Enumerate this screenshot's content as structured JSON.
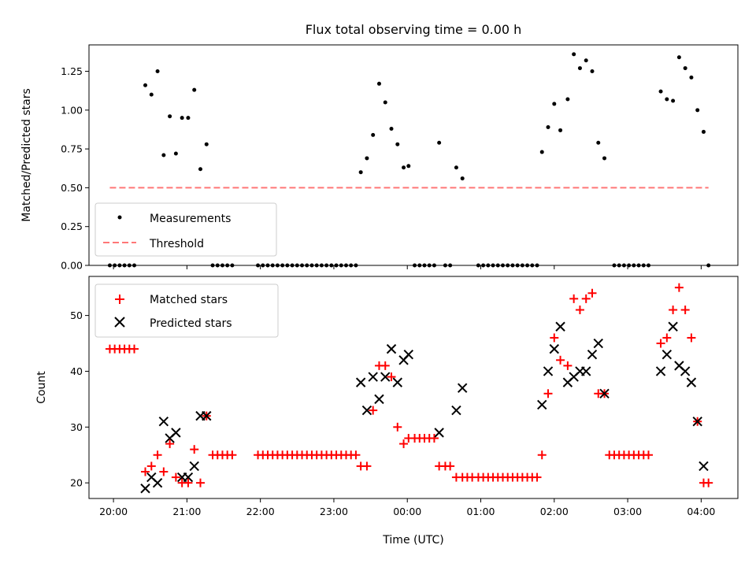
{
  "chart_data": [
    {
      "panel": "top",
      "type": "scatter",
      "title": "Flux total observing time = 0.00 h",
      "xlabel": "",
      "ylabel": "Matched/Predicted stars",
      "xlim": [
        "19:40",
        "04:30"
      ],
      "ylim": [
        0.0,
        1.42
      ],
      "yticks": [
        "0.00",
        "0.25",
        "0.50",
        "0.75",
        "1.00",
        "1.25"
      ],
      "xticks": [
        "20:00",
        "21:00",
        "22:00",
        "23:00",
        "00:00",
        "01:00",
        "02:00",
        "03:00",
        "04:00"
      ],
      "grid": false,
      "legend": {
        "position": "lower-left",
        "entries": [
          "Measurements",
          "Threshold"
        ]
      },
      "series": [
        {
          "name": "Measurements",
          "marker": "dot",
          "color": "#000000",
          "points": [
            [
              "19:57",
              0
            ],
            [
              "20:01",
              0
            ],
            [
              "20:05",
              0
            ],
            [
              "20:09",
              0
            ],
            [
              "20:13",
              0
            ],
            [
              "20:17",
              0
            ],
            [
              "20:26",
              1.16
            ],
            [
              "20:31",
              1.1
            ],
            [
              "20:36",
              1.25
            ],
            [
              "20:41",
              0.71
            ],
            [
              "20:46",
              0.96
            ],
            [
              "20:51",
              0.72
            ],
            [
              "20:56",
              0.95
            ],
            [
              "21:01",
              0.95
            ],
            [
              "21:06",
              1.13
            ],
            [
              "21:11",
              0.62
            ],
            [
              "21:16",
              0.78
            ],
            [
              "21:21",
              0
            ],
            [
              "21:25",
              0
            ],
            [
              "21:29",
              0
            ],
            [
              "21:33",
              0
            ],
            [
              "21:37",
              0
            ],
            [
              "21:58",
              0
            ],
            [
              "22:02",
              0
            ],
            [
              "22:06",
              0
            ],
            [
              "22:10",
              0
            ],
            [
              "22:14",
              0
            ],
            [
              "22:18",
              0
            ],
            [
              "22:22",
              0
            ],
            [
              "22:26",
              0
            ],
            [
              "22:30",
              0
            ],
            [
              "22:34",
              0
            ],
            [
              "22:38",
              0
            ],
            [
              "22:42",
              0
            ],
            [
              "22:46",
              0
            ],
            [
              "22:50",
              0
            ],
            [
              "22:54",
              0
            ],
            [
              "22:58",
              0
            ],
            [
              "23:02",
              0
            ],
            [
              "23:06",
              0
            ],
            [
              "23:10",
              0
            ],
            [
              "23:14",
              0
            ],
            [
              "23:18",
              0
            ],
            [
              "23:22",
              0.6
            ],
            [
              "23:27",
              0.69
            ],
            [
              "23:32",
              0.84
            ],
            [
              "23:37",
              1.17
            ],
            [
              "23:42",
              1.05
            ],
            [
              "23:47",
              0.88
            ],
            [
              "23:52",
              0.78
            ],
            [
              "23:57",
              0.63
            ],
            [
              "00:01",
              0.64
            ],
            [
              "00:06",
              0
            ],
            [
              "00:10",
              0
            ],
            [
              "00:14",
              0
            ],
            [
              "00:18",
              0
            ],
            [
              "00:22",
              0
            ],
            [
              "00:26",
              0.79
            ],
            [
              "00:31",
              0
            ],
            [
              "00:35",
              0
            ],
            [
              "00:40",
              0.63
            ],
            [
              "00:45",
              0.56
            ],
            [
              "00:58",
              0
            ],
            [
              "01:02",
              0
            ],
            [
              "01:06",
              0
            ],
            [
              "01:10",
              0
            ],
            [
              "01:14",
              0
            ],
            [
              "01:18",
              0
            ],
            [
              "01:22",
              0
            ],
            [
              "01:26",
              0
            ],
            [
              "01:30",
              0
            ],
            [
              "01:34",
              0
            ],
            [
              "01:38",
              0
            ],
            [
              "01:42",
              0
            ],
            [
              "01:46",
              0
            ],
            [
              "01:50",
              0.73
            ],
            [
              "01:55",
              0.89
            ],
            [
              "02:00",
              1.04
            ],
            [
              "02:05",
              0.87
            ],
            [
              "02:11",
              1.07
            ],
            [
              "02:16",
              1.36
            ],
            [
              "02:21",
              1.27
            ],
            [
              "02:26",
              1.32
            ],
            [
              "02:31",
              1.25
            ],
            [
              "02:36",
              0.79
            ],
            [
              "02:41",
              0.69
            ],
            [
              "02:49",
              0
            ],
            [
              "02:53",
              0
            ],
            [
              "02:57",
              0
            ],
            [
              "03:01",
              0
            ],
            [
              "03:05",
              0
            ],
            [
              "03:09",
              0
            ],
            [
              "03:13",
              0
            ],
            [
              "03:17",
              0
            ],
            [
              "03:27",
              1.12
            ],
            [
              "03:32",
              1.07
            ],
            [
              "03:37",
              1.06
            ],
            [
              "03:42",
              1.34
            ],
            [
              "03:47",
              1.27
            ],
            [
              "03:52",
              1.21
            ],
            [
              "03:57",
              1.0
            ],
            [
              "04:02",
              0.86
            ],
            [
              "04:06",
              0
            ]
          ]
        },
        {
          "name": "Threshold",
          "style": "dashed",
          "color": "#ff7777",
          "points": [
            [
              "19:57",
              0.5
            ],
            [
              "04:06",
              0.5
            ]
          ]
        }
      ]
    },
    {
      "panel": "bottom",
      "type": "scatter",
      "title": "",
      "xlabel": "Time (UTC)",
      "ylabel": "Count",
      "xlim": [
        "19:40",
        "04:30"
      ],
      "ylim": [
        17.2,
        57.0
      ],
      "yticks": [
        "20",
        "30",
        "40",
        "50"
      ],
      "xticks": [
        "20:00",
        "21:00",
        "22:00",
        "23:00",
        "00:00",
        "01:00",
        "02:00",
        "03:00",
        "04:00"
      ],
      "grid": false,
      "legend": {
        "position": "top-left",
        "entries": [
          "Matched stars",
          "Predicted stars"
        ]
      },
      "series": [
        {
          "name": "Matched stars",
          "marker": "plus",
          "color": "#ff0000",
          "points": [
            [
              "19:57",
              44
            ],
            [
              "20:01",
              44
            ],
            [
              "20:05",
              44
            ],
            [
              "20:09",
              44
            ],
            [
              "20:13",
              44
            ],
            [
              "20:17",
              44
            ],
            [
              "20:26",
              22
            ],
            [
              "20:31",
              23
            ],
            [
              "20:36",
              25
            ],
            [
              "20:41",
              22
            ],
            [
              "20:46",
              27
            ],
            [
              "20:51",
              21
            ],
            [
              "20:56",
              20
            ],
            [
              "21:01",
              20
            ],
            [
              "21:06",
              26
            ],
            [
              "21:11",
              20
            ],
            [
              "21:16",
              32
            ],
            [
              "21:21",
              25
            ],
            [
              "21:25",
              25
            ],
            [
              "21:29",
              25
            ],
            [
              "21:33",
              25
            ],
            [
              "21:37",
              25
            ],
            [
              "21:58",
              25
            ],
            [
              "22:02",
              25
            ],
            [
              "22:06",
              25
            ],
            [
              "22:10",
              25
            ],
            [
              "22:14",
              25
            ],
            [
              "22:18",
              25
            ],
            [
              "22:22",
              25
            ],
            [
              "22:26",
              25
            ],
            [
              "22:30",
              25
            ],
            [
              "22:34",
              25
            ],
            [
              "22:38",
              25
            ],
            [
              "22:42",
              25
            ],
            [
              "22:46",
              25
            ],
            [
              "22:50",
              25
            ],
            [
              "22:54",
              25
            ],
            [
              "22:58",
              25
            ],
            [
              "23:02",
              25
            ],
            [
              "23:06",
              25
            ],
            [
              "23:10",
              25
            ],
            [
              "23:14",
              25
            ],
            [
              "23:18",
              25
            ],
            [
              "23:22",
              23
            ],
            [
              "23:27",
              23
            ],
            [
              "23:32",
              33
            ],
            [
              "23:37",
              41
            ],
            [
              "23:42",
              41
            ],
            [
              "23:47",
              39
            ],
            [
              "23:52",
              30
            ],
            [
              "23:57",
              27
            ],
            [
              "00:01",
              28
            ],
            [
              "00:06",
              28
            ],
            [
              "00:10",
              28
            ],
            [
              "00:14",
              28
            ],
            [
              "00:18",
              28
            ],
            [
              "00:22",
              28
            ],
            [
              "00:26",
              23
            ],
            [
              "00:31",
              23
            ],
            [
              "00:35",
              23
            ],
            [
              "00:40",
              21
            ],
            [
              "00:45",
              21
            ],
            [
              "00:49",
              21
            ],
            [
              "00:53",
              21
            ],
            [
              "00:58",
              21
            ],
            [
              "01:02",
              21
            ],
            [
              "01:06",
              21
            ],
            [
              "01:10",
              21
            ],
            [
              "01:14",
              21
            ],
            [
              "01:18",
              21
            ],
            [
              "01:22",
              21
            ],
            [
              "01:26",
              21
            ],
            [
              "01:30",
              21
            ],
            [
              "01:34",
              21
            ],
            [
              "01:38",
              21
            ],
            [
              "01:42",
              21
            ],
            [
              "01:46",
              21
            ],
            [
              "01:50",
              25
            ],
            [
              "01:55",
              36
            ],
            [
              "02:00",
              46
            ],
            [
              "02:05",
              42
            ],
            [
              "02:11",
              41
            ],
            [
              "02:16",
              53
            ],
            [
              "02:21",
              51
            ],
            [
              "02:26",
              53
            ],
            [
              "02:31",
              54
            ],
            [
              "02:36",
              36
            ],
            [
              "02:41",
              36
            ],
            [
              "02:45",
              25
            ],
            [
              "02:49",
              25
            ],
            [
              "02:53",
              25
            ],
            [
              "02:57",
              25
            ],
            [
              "03:01",
              25
            ],
            [
              "03:05",
              25
            ],
            [
              "03:09",
              25
            ],
            [
              "03:13",
              25
            ],
            [
              "03:17",
              25
            ],
            [
              "03:27",
              45
            ],
            [
              "03:32",
              46
            ],
            [
              "03:37",
              51
            ],
            [
              "03:42",
              55
            ],
            [
              "03:47",
              51
            ],
            [
              "03:52",
              46
            ],
            [
              "03:57",
              31
            ],
            [
              "04:02",
              20
            ],
            [
              "04:06",
              20
            ]
          ]
        },
        {
          "name": "Predicted stars",
          "marker": "x",
          "color": "#000000",
          "points": [
            [
              "20:26",
              19
            ],
            [
              "20:31",
              21
            ],
            [
              "20:36",
              20
            ],
            [
              "20:41",
              31
            ],
            [
              "20:46",
              28
            ],
            [
              "20:51",
              29
            ],
            [
              "20:56",
              21
            ],
            [
              "21:01",
              21
            ],
            [
              "21:06",
              23
            ],
            [
              "21:11",
              32
            ],
            [
              "21:16",
              32
            ],
            [
              "23:22",
              38
            ],
            [
              "23:27",
              33
            ],
            [
              "23:32",
              39
            ],
            [
              "23:37",
              35
            ],
            [
              "23:42",
              39
            ],
            [
              "23:47",
              44
            ],
            [
              "23:52",
              38
            ],
            [
              "23:57",
              42
            ],
            [
              "00:01",
              43
            ],
            [
              "00:26",
              29
            ],
            [
              "00:40",
              33
            ],
            [
              "00:45",
              37
            ],
            [
              "01:50",
              34
            ],
            [
              "01:55",
              40
            ],
            [
              "02:00",
              44
            ],
            [
              "02:05",
              48
            ],
            [
              "02:11",
              38
            ],
            [
              "02:16",
              39
            ],
            [
              "02:21",
              40
            ],
            [
              "02:26",
              40
            ],
            [
              "02:31",
              43
            ],
            [
              "02:36",
              45
            ],
            [
              "02:41",
              36
            ],
            [
              "03:27",
              40
            ],
            [
              "03:32",
              43
            ],
            [
              "03:37",
              48
            ],
            [
              "03:42",
              41
            ],
            [
              "03:47",
              40
            ],
            [
              "03:52",
              38
            ],
            [
              "03:57",
              31
            ],
            [
              "04:02",
              23
            ]
          ]
        }
      ]
    }
  ]
}
